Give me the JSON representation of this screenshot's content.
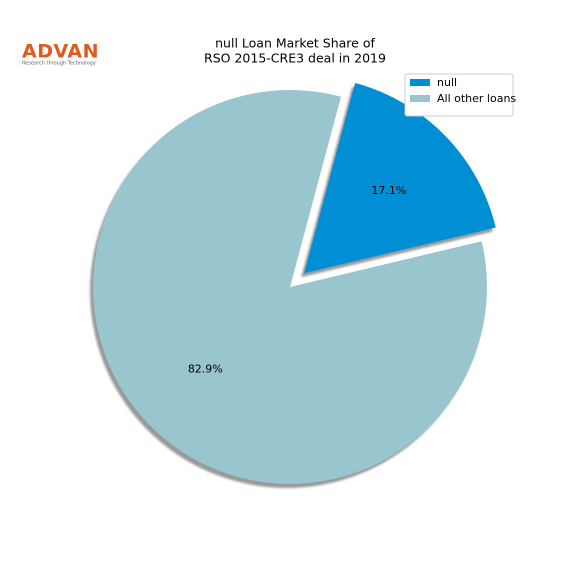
{
  "logo": {
    "name": "ADVAN",
    "tagline": "Research through Technology"
  },
  "chart_data": {
    "type": "pie",
    "title": [
      "null Loan Market Share of",
      "RSO 2015-CRE3 deal in 2019"
    ],
    "categories": [
      "null",
      "All other loans"
    ],
    "values": [
      17.1,
      82.9
    ],
    "value_labels": [
      "17.1%",
      "82.9%"
    ],
    "colors": [
      "#008fd5",
      "#99c5ce"
    ],
    "explode": [
      0.1,
      0
    ],
    "startangle": 75,
    "counterclock": false,
    "shadow": true,
    "legend": "upper right"
  }
}
